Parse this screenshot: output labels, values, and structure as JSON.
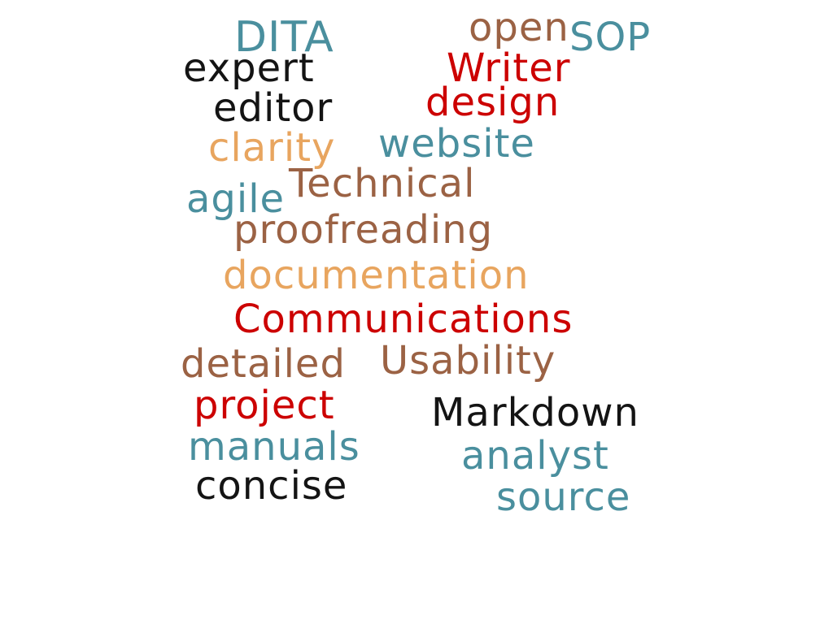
{
  "words": {
    "dita": "DITA",
    "open": "open",
    "sop": "SOP",
    "expert": "expert",
    "writer": "Writer",
    "editor": "editor",
    "design": "design",
    "clarity": "clarity",
    "website": "website",
    "technical": "Technical",
    "agile": "agile",
    "proofreading": "proofreading",
    "documentation": "documentation",
    "communications": "Communications",
    "detailed": "detailed",
    "usability": "Usability",
    "project": "project",
    "markdown": "Markdown",
    "manuals": "manuals",
    "analyst": "analyst",
    "concise": "concise",
    "source": "source"
  },
  "colors": {
    "teal": "#4a8f9e",
    "red": "#cc0000",
    "brown": "#9b6244",
    "tan": "#e8a55f",
    "black": "#141414"
  }
}
